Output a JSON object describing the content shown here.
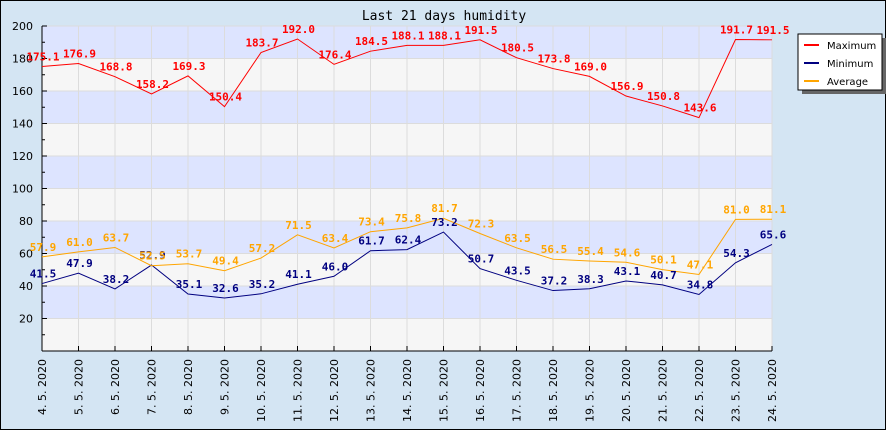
{
  "chart_data": {
    "type": "line",
    "title": "Last 21 days humidity",
    "xlabel": "",
    "ylabel": "",
    "ylim": [
      0,
      200
    ],
    "yticks": [
      20,
      40,
      60,
      80,
      100,
      120,
      140,
      160,
      180,
      200
    ],
    "grid": true,
    "legend_position": "right",
    "categories": [
      "4. 5. 2020",
      "5. 5. 2020",
      "6. 5. 2020",
      "7. 5. 2020",
      "8. 5. 2020",
      "9. 5. 2020",
      "10. 5. 2020",
      "11. 5. 2020",
      "12. 5. 2020",
      "13. 5. 2020",
      "14. 5. 2020",
      "15. 5. 2020",
      "16. 5. 2020",
      "17. 5. 2020",
      "18. 5. 2020",
      "19. 5. 2020",
      "20. 5. 2020",
      "21. 5. 2020",
      "22. 5. 2020",
      "23. 5. 2020",
      "24. 5. 2020"
    ],
    "series": [
      {
        "name": "Maximum",
        "color": "#ff0000",
        "values": [
          175.1,
          176.9,
          168.8,
          158.2,
          169.3,
          150.4,
          183.7,
          192.0,
          176.4,
          184.5,
          188.1,
          188.1,
          191.5,
          180.5,
          173.8,
          169.0,
          156.9,
          150.8,
          143.6,
          191.7,
          191.5
        ]
      },
      {
        "name": "Minimum",
        "color": "#000080",
        "values": [
          41.5,
          47.9,
          38.2,
          52.9,
          35.1,
          32.6,
          35.2,
          41.1,
          46.0,
          61.7,
          62.4,
          73.2,
          50.7,
          43.5,
          37.2,
          38.3,
          43.1,
          40.7,
          34.8,
          54.3,
          65.6
        ]
      },
      {
        "name": "Average",
        "color": "#ffa500",
        "values": [
          57.9,
          61.0,
          63.7,
          52.5,
          53.7,
          49.4,
          57.2,
          71.5,
          63.4,
          73.4,
          75.8,
          81.7,
          72.3,
          63.5,
          56.5,
          55.4,
          54.6,
          50.1,
          47.1,
          81.0,
          81.1
        ]
      }
    ]
  },
  "legend": {
    "items": [
      {
        "label": "Maximum",
        "color": "#ff0000"
      },
      {
        "label": "Minimum",
        "color": "#000080"
      },
      {
        "label": "Average",
        "color": "#ffa500"
      }
    ]
  }
}
